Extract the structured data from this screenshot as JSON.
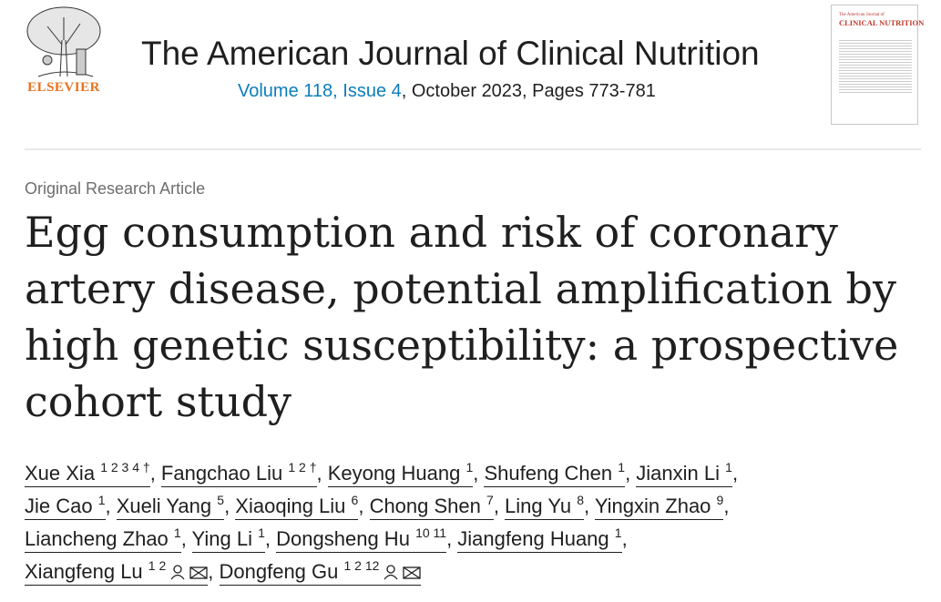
{
  "publisher": {
    "logo_text": "ELSEVIER"
  },
  "journal": {
    "title": "The American Journal of Clinical Nutrition",
    "volume_issue": "Volume 118, Issue 4",
    "date_pages": ", October 2023, Pages 773-781",
    "cover_title_small": "The American Journal of",
    "cover_title_large": "CLINICAL NUTRITION"
  },
  "article": {
    "type": "Original Research Article",
    "title": "Egg consumption and risk of coronary artery disease, potential amplification by high genetic susceptibility: a prospective cohort study"
  },
  "authors": [
    {
      "name": "Xue Xia",
      "sup": "1 2 3 4 †"
    },
    {
      "name": "Fangchao Liu",
      "sup": "1 2 †"
    },
    {
      "name": "Keyong Huang",
      "sup": "1"
    },
    {
      "name": "Shufeng Chen",
      "sup": "1"
    },
    {
      "name": "Jianxin Li",
      "sup": "1"
    },
    {
      "name": "Jie Cao",
      "sup": "1"
    },
    {
      "name": "Xueli Yang",
      "sup": "5"
    },
    {
      "name": "Xiaoqing Liu",
      "sup": "6"
    },
    {
      "name": "Chong Shen",
      "sup": "7"
    },
    {
      "name": "Ling Yu",
      "sup": "8"
    },
    {
      "name": "Yingxin Zhao",
      "sup": "9"
    },
    {
      "name": "Liancheng Zhao",
      "sup": "1"
    },
    {
      "name": "Ying Li",
      "sup": "1"
    },
    {
      "name": "Dongsheng Hu",
      "sup": "10 11"
    },
    {
      "name": "Jiangfeng Huang",
      "sup": "1"
    },
    {
      "name": "Xiangfeng Lu",
      "sup": "1 2",
      "icons": [
        "person-icon",
        "email-icon"
      ]
    },
    {
      "name": "Dongfeng Gu",
      "sup": "1 2 12",
      "icons": [
        "person-icon",
        "email-icon"
      ]
    }
  ],
  "colors": {
    "link": "#0c7dbb",
    "elsevier_orange": "#e9711c"
  }
}
